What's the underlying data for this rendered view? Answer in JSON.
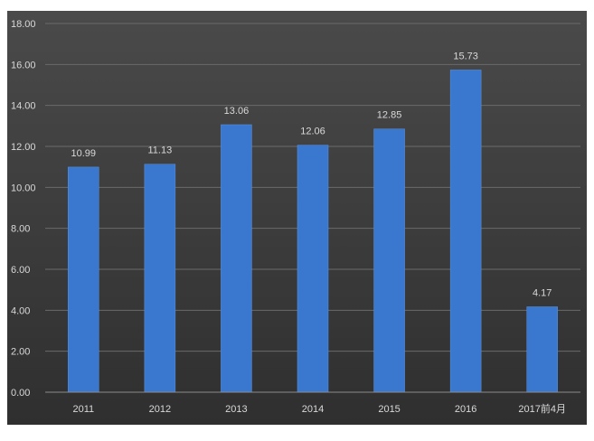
{
  "colors": {
    "page_background": "#ffffff",
    "plot_background_top": "#4a4a4a",
    "plot_background_bottom": "#2f2f2f",
    "bar": "#3a78cf",
    "bar_edge": "#5b93e0",
    "text": "#d9d9d9",
    "gridline": "#6a6a6a"
  },
  "chart_data": {
    "type": "bar",
    "title": "",
    "xlabel": "",
    "ylabel": "",
    "categories": [
      "2011",
      "2012",
      "2013",
      "2014",
      "2015",
      "2016",
      "2017前4月"
    ],
    "series": [
      {
        "values": [
          10.99,
          11.13,
          13.06,
          12.06,
          12.85,
          15.73,
          4.17
        ]
      }
    ],
    "data_labels": [
      "10.99",
      "11.13",
      "13.06",
      "12.06",
      "12.85",
      "15.73",
      "4.17"
    ],
    "ylim": [
      0,
      18
    ],
    "yticks": [
      0,
      2,
      4,
      6,
      8,
      10,
      12,
      14,
      16,
      18
    ],
    "ytick_labels": [
      "0.00",
      "2.00",
      "4.00",
      "6.00",
      "8.00",
      "10.00",
      "12.00",
      "14.00",
      "16.00",
      "18.00"
    ],
    "grid": true,
    "legend": "none"
  }
}
